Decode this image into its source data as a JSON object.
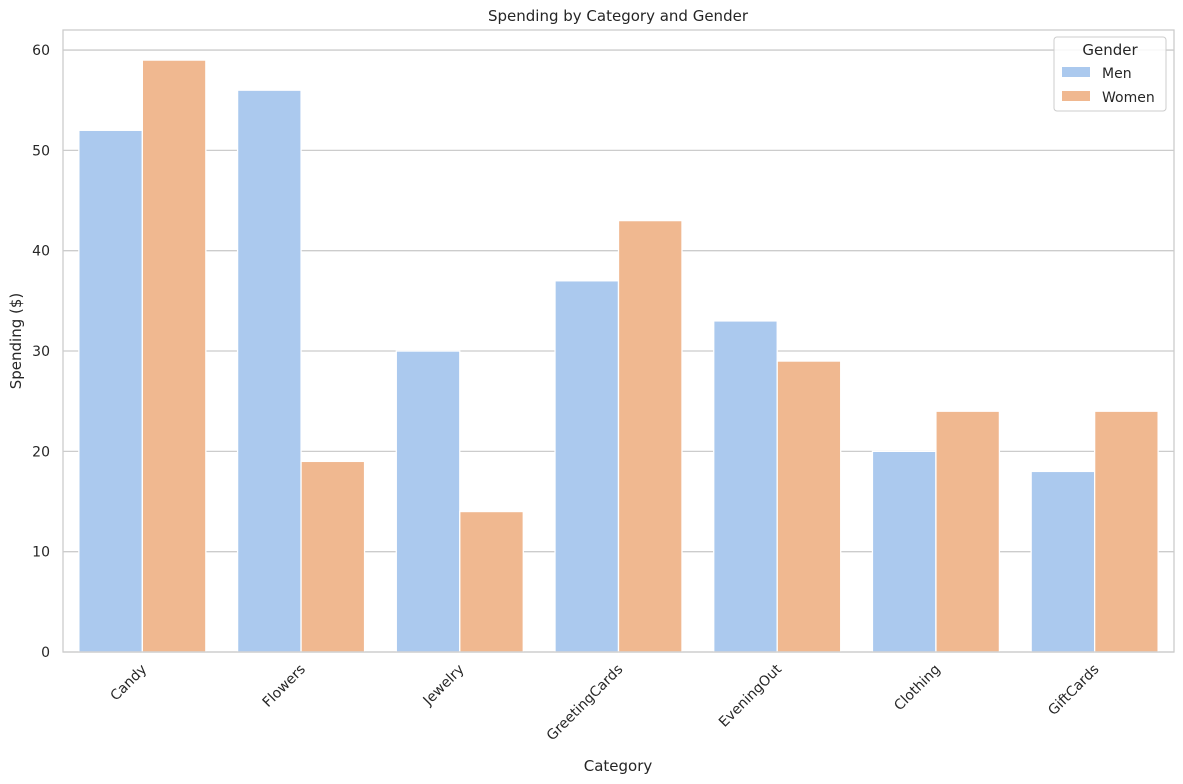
{
  "chart_data": {
    "type": "bar",
    "title": "Spending by Category and Gender",
    "xlabel": "Category",
    "ylabel": "Spending ($)",
    "categories": [
      "Candy",
      "Flowers",
      "Jewelry",
      "GreetingCards",
      "EveningOut",
      "Clothing",
      "GiftCards"
    ],
    "series": [
      {
        "name": "Men",
        "values": [
          52,
          56,
          30,
          37,
          33,
          20,
          18
        ],
        "color": "#abc9ee"
      },
      {
        "name": "Women",
        "values": [
          59,
          19,
          14,
          43,
          29,
          24,
          24
        ],
        "color": "#f0b890"
      }
    ],
    "ylim": [
      0,
      62
    ],
    "yticks": [
      0,
      10,
      20,
      30,
      40,
      50,
      60
    ],
    "grid": "y",
    "legend": {
      "title": "Gender",
      "placement": "top-right"
    }
  }
}
